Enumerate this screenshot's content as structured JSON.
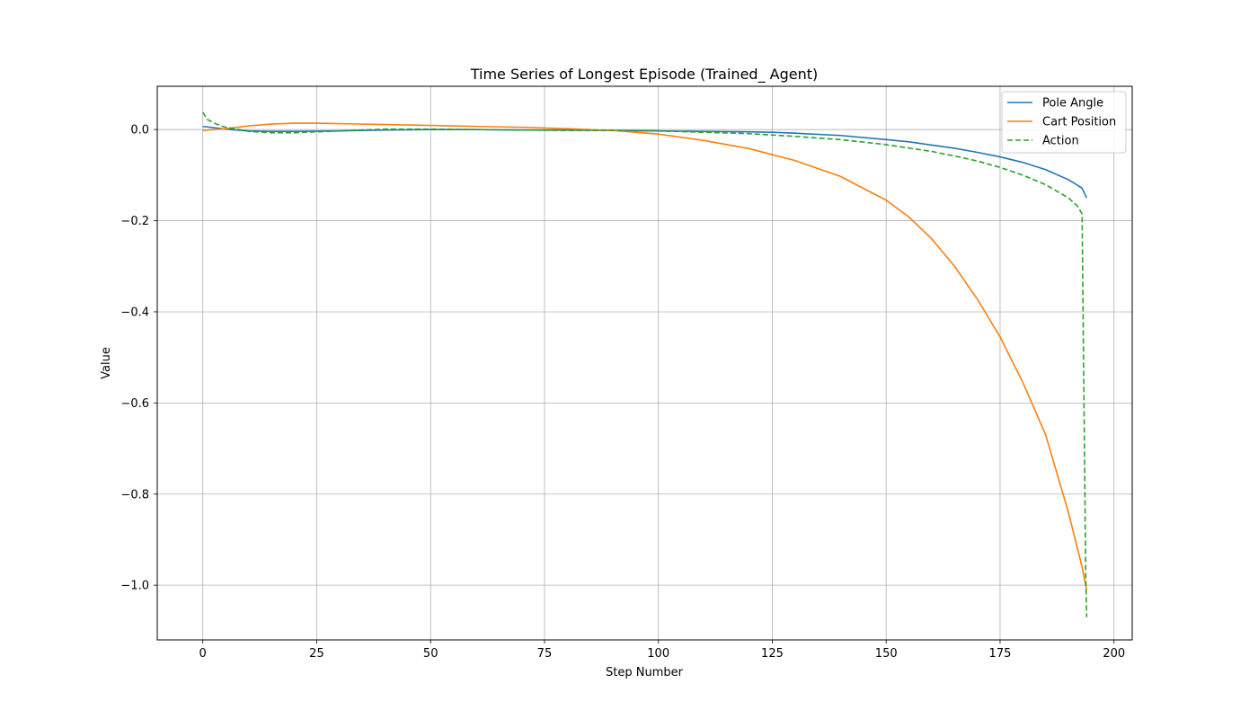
{
  "chart_data": {
    "type": "line",
    "title": "Time Series of Longest Episode (Trained_ Agent)",
    "xlabel": "Step Number",
    "ylabel": "Value",
    "xlim": [
      -10,
      204
    ],
    "ylim": [
      -1.12,
      0.095
    ],
    "xticks": [
      0,
      25,
      50,
      75,
      100,
      125,
      150,
      175,
      200
    ],
    "xtick_labels": [
      "0",
      "25",
      "50",
      "75",
      "100",
      "125",
      "150",
      "175",
      "200"
    ],
    "yticks": [
      0.0,
      -0.2,
      -0.4,
      -0.6,
      -0.8,
      -1.0
    ],
    "ytick_labels": [
      "0.0",
      "−0.2",
      "−0.4",
      "−0.6",
      "−0.8",
      "−1.0"
    ],
    "grid": true,
    "legend_position": "top-right",
    "series": [
      {
        "name": "Pole Angle",
        "color": "#1f77b4",
        "dash": "solid",
        "x": [
          0,
          5,
          10,
          15,
          20,
          30,
          40,
          50,
          60,
          70,
          80,
          90,
          100,
          110,
          120,
          125,
          130,
          140,
          150,
          155,
          160,
          165,
          170,
          175,
          180,
          185,
          190,
          192,
          193,
          194
        ],
        "y": [
          0.007,
          0.001,
          -0.003,
          -0.004,
          -0.004,
          -0.003,
          -0.001,
          0.0,
          0.0,
          -0.001,
          -0.001,
          -0.002,
          -0.003,
          -0.004,
          -0.005,
          -0.006,
          -0.008,
          -0.013,
          -0.022,
          -0.027,
          -0.034,
          -0.041,
          -0.05,
          -0.06,
          -0.072,
          -0.088,
          -0.11,
          -0.122,
          -0.129,
          -0.15
        ]
      },
      {
        "name": "Cart Position",
        "color": "#ff7f0e",
        "dash": "solid",
        "x": [
          0,
          5,
          10,
          15,
          20,
          25,
          30,
          40,
          50,
          60,
          70,
          80,
          90,
          100,
          110,
          120,
          125,
          130,
          140,
          150,
          155,
          160,
          165,
          170,
          175,
          180,
          185,
          190,
          193,
          194
        ],
        "y": [
          -0.002,
          0.002,
          0.008,
          0.012,
          0.014,
          0.014,
          0.013,
          0.011,
          0.009,
          0.007,
          0.005,
          0.002,
          -0.002,
          -0.01,
          -0.024,
          -0.042,
          -0.055,
          -0.068,
          -0.103,
          -0.155,
          -0.192,
          -0.24,
          -0.3,
          -0.372,
          -0.455,
          -0.555,
          -0.67,
          -0.84,
          -0.96,
          -1.01
        ]
      },
      {
        "name": "Action",
        "color": "#2ca02c",
        "dash": "dashed",
        "x": [
          0,
          1,
          3,
          5,
          8,
          10,
          15,
          20,
          25,
          30,
          40,
          50,
          60,
          70,
          80,
          90,
          100,
          110,
          120,
          125,
          130,
          140,
          150,
          160,
          165,
          170,
          175,
          180,
          185,
          190,
          192,
          193,
          193.8,
          194
        ],
        "y": [
          0.038,
          0.022,
          0.012,
          0.005,
          0.0,
          -0.004,
          -0.007,
          -0.007,
          -0.005,
          -0.003,
          0.001,
          0.001,
          0.0,
          -0.001,
          -0.002,
          -0.002,
          -0.003,
          -0.006,
          -0.009,
          -0.012,
          -0.015,
          -0.022,
          -0.033,
          -0.048,
          -0.058,
          -0.069,
          -0.083,
          -0.1,
          -0.121,
          -0.15,
          -0.168,
          -0.185,
          -0.98,
          -1.07
        ]
      }
    ]
  }
}
